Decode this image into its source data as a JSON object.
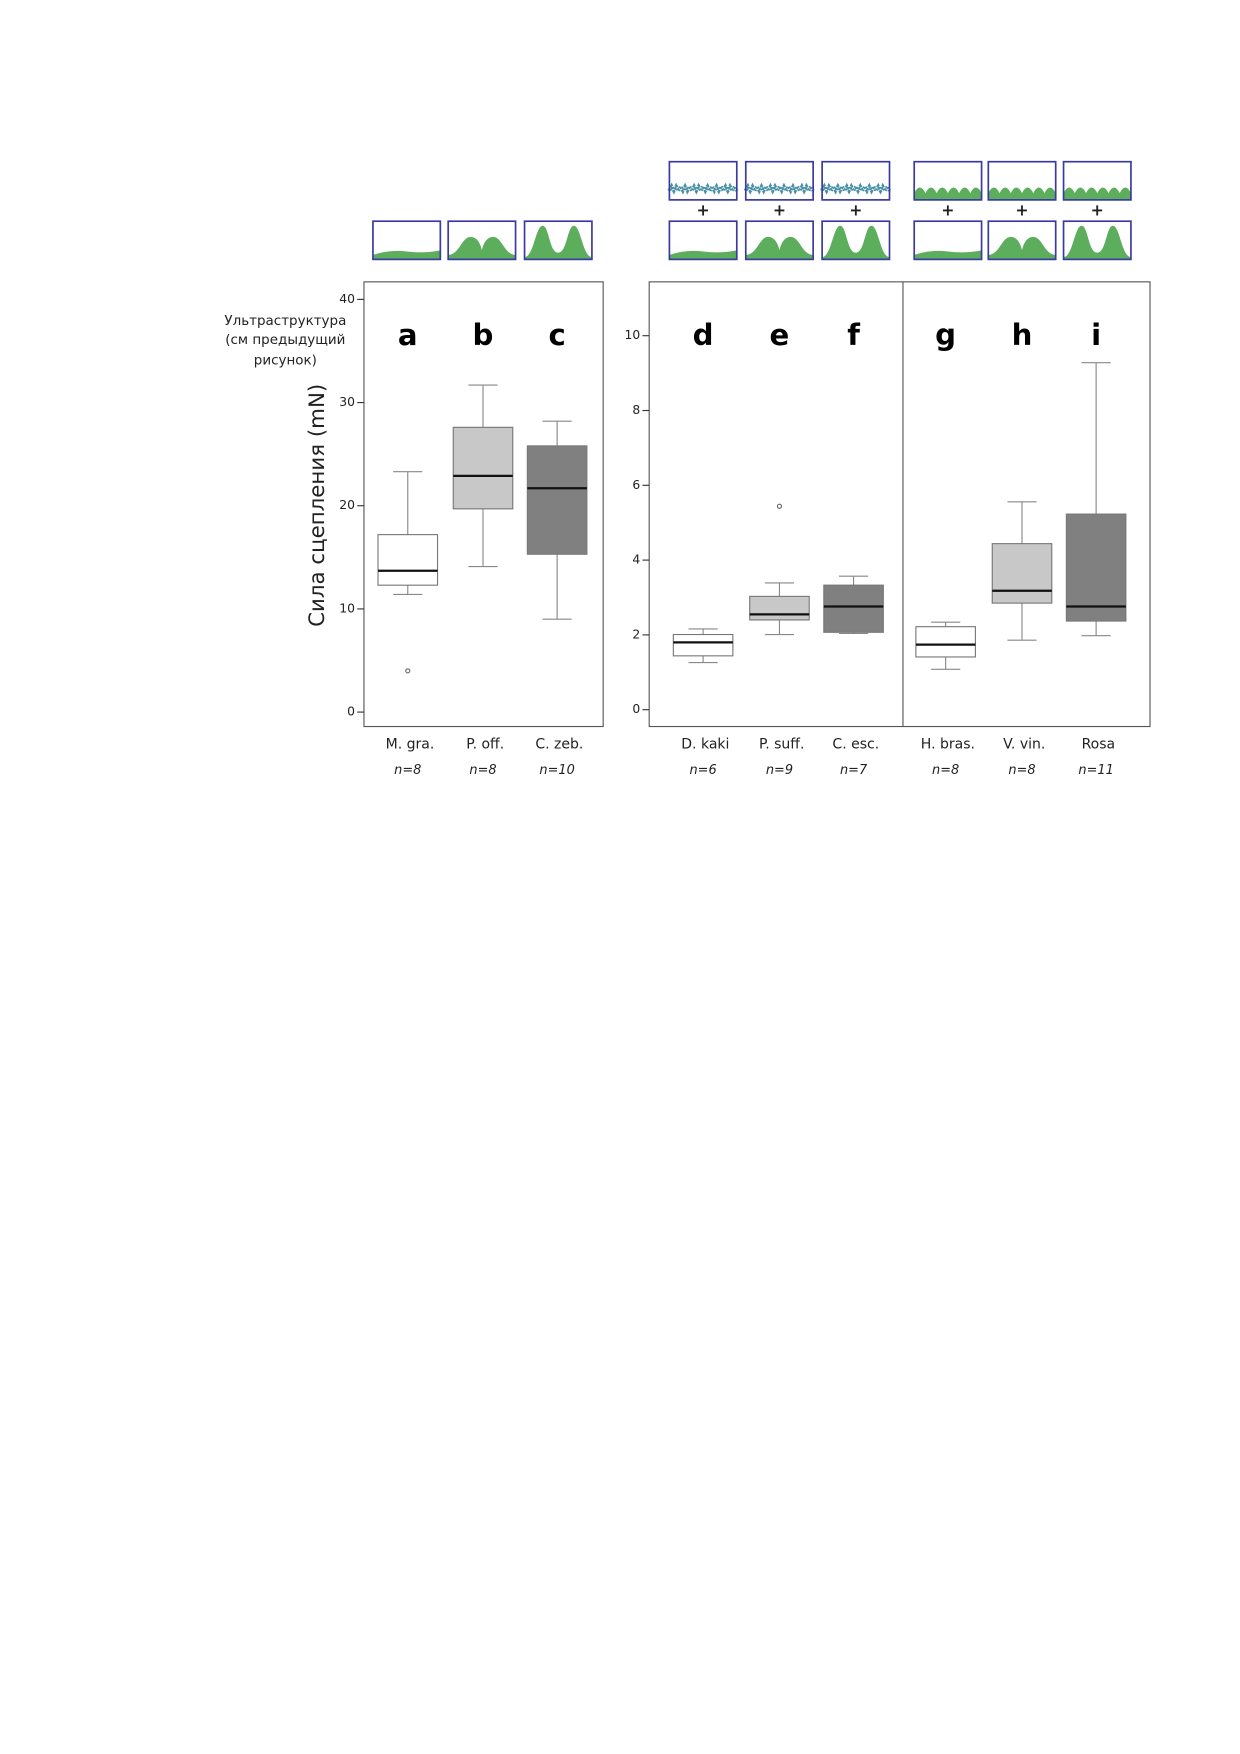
{
  "chart_data": [
    {
      "type": "box",
      "ylabel": "Сила сцепления (mN)",
      "annotation": [
        "Ультраструктура",
        "(см предыдущий",
        "рисунок)"
      ],
      "ylim": [
        -1.4,
        41.7
      ],
      "yticks": [
        0,
        10,
        20,
        30,
        40
      ],
      "categories": [
        "M. gra.",
        "P. off.",
        "C. zeb."
      ],
      "letters": [
        "a",
        "b",
        "c"
      ],
      "n_labels": [
        "n=8",
        "n=8",
        "n=10"
      ],
      "colors": [
        "#ffffff",
        "#c8c8c8",
        "#808080"
      ],
      "boxes": [
        {
          "whisker_low": 11.4,
          "q1": 12.3,
          "median": 13.7,
          "q3": 17.2,
          "whisker_high": 23.3,
          "outliers": [
            4.0
          ]
        },
        {
          "whisker_low": 14.1,
          "q1": 19.7,
          "median": 22.9,
          "q3": 27.6,
          "whisker_high": 31.7,
          "outliers": []
        },
        {
          "whisker_low": 9.0,
          "q1": 15.3,
          "median": 21.7,
          "q3": 25.8,
          "whisker_high": 28.2,
          "outliers": []
        }
      ]
    },
    {
      "type": "box",
      "ylim": [
        -0.45,
        11.44
      ],
      "yticks": [
        0,
        2,
        4,
        6,
        8,
        10
      ],
      "categories": [
        "D. kaki",
        "P. suff.",
        "C. esc.",
        "H. bras.",
        "V. vin.",
        "Rosa"
      ],
      "letters": [
        "d",
        "e",
        "f",
        "g",
        "h",
        "i"
      ],
      "n_labels": [
        "n=6",
        "n=9",
        "n=7",
        "n=8",
        "n=8",
        "n=11"
      ],
      "colors": [
        "#ffffff",
        "#c8c8c8",
        "#808080",
        "#ffffff",
        "#c8c8c8",
        "#808080"
      ],
      "boxes": [
        {
          "whisker_low": 1.26,
          "q1": 1.44,
          "median": 1.8,
          "q3": 2.01,
          "whisker_high": 2.16,
          "outliers": []
        },
        {
          "whisker_low": 2.01,
          "q1": 2.4,
          "median": 2.55,
          "q3": 3.03,
          "whisker_high": 3.39,
          "outliers": [
            5.44
          ]
        },
        {
          "whisker_low": 2.04,
          "q1": 2.07,
          "median": 2.76,
          "q3": 3.33,
          "whisker_high": 3.57,
          "outliers": []
        },
        {
          "whisker_low": 1.08,
          "q1": 1.41,
          "median": 1.74,
          "q3": 2.22,
          "whisker_high": 2.34,
          "outliers": []
        },
        {
          "whisker_low": 1.86,
          "q1": 2.85,
          "median": 3.18,
          "q3": 4.44,
          "whisker_high": 5.56,
          "outliers": []
        },
        {
          "whisker_low": 1.98,
          "q1": 2.37,
          "median": 2.76,
          "q3": 5.23,
          "whisker_high": 9.28,
          "outliers": []
        }
      ]
    }
  ]
}
